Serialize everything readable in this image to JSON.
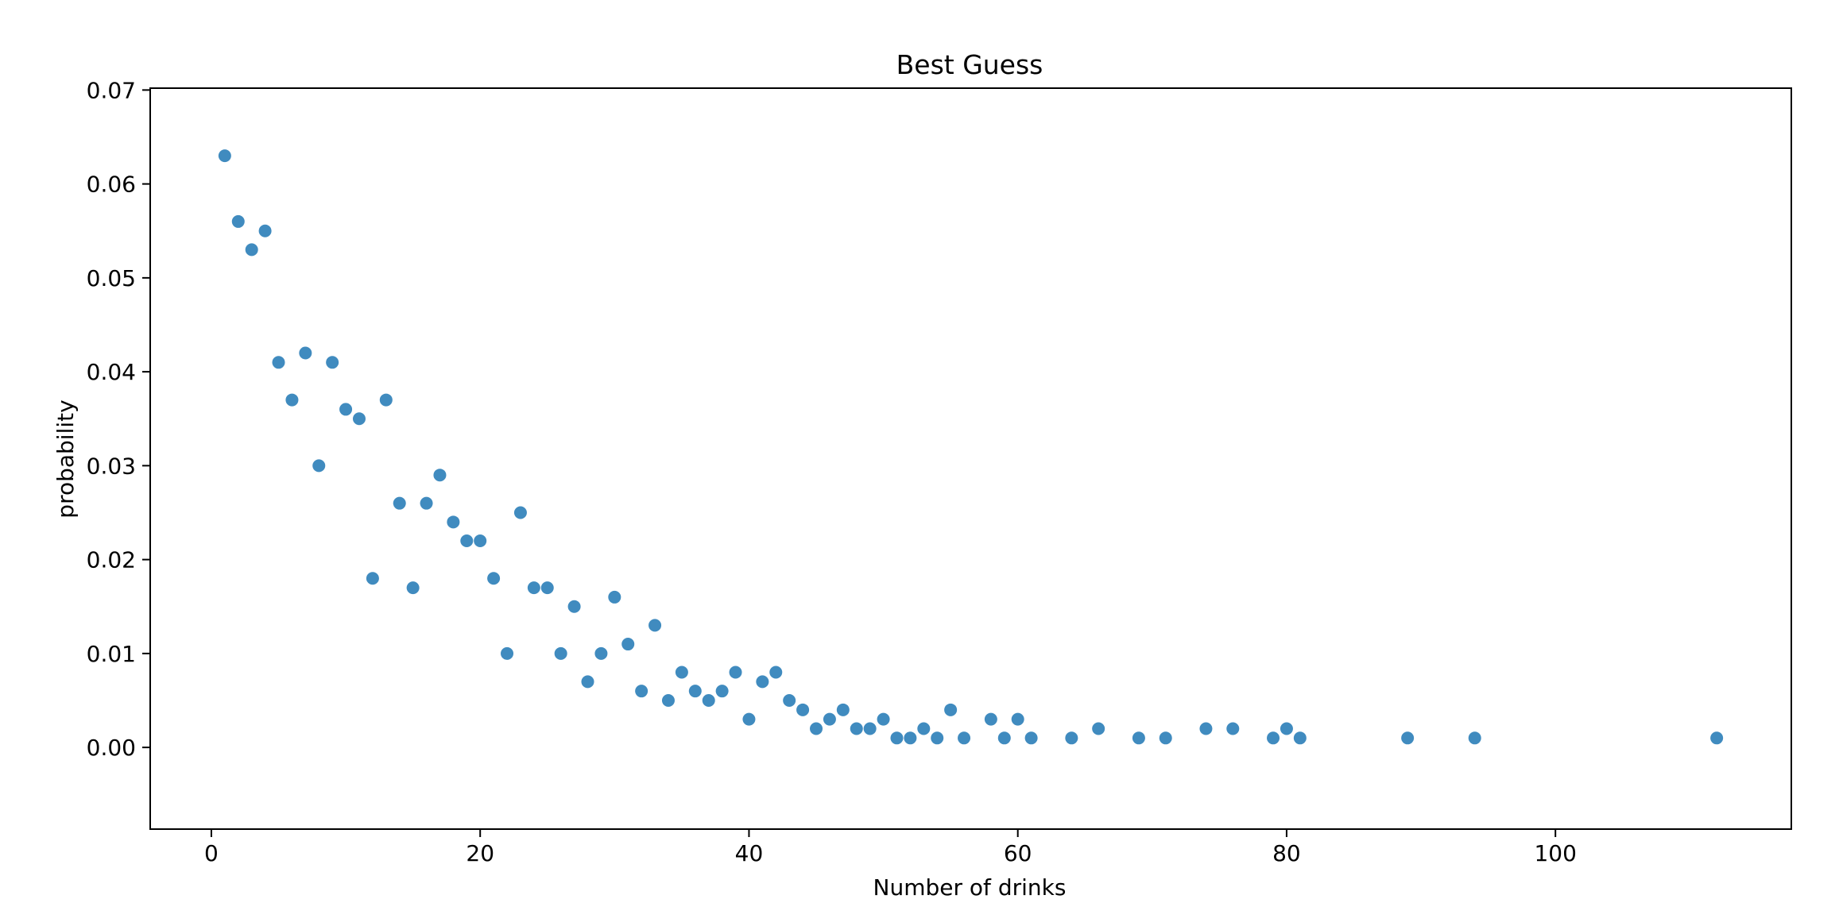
{
  "chart_data": {
    "type": "scatter",
    "title": "Best Guess",
    "xlabel": "Number of drinks",
    "ylabel": "probability",
    "xlim": [
      -4.55,
      117.55
    ],
    "ylim": [
      -0.0087,
      0.0702
    ],
    "xticks": [
      0,
      20,
      40,
      60,
      80,
      100
    ],
    "yticks": [
      0.0,
      0.01,
      0.02,
      0.03,
      0.04,
      0.05,
      0.06,
      0.07
    ],
    "xtick_labels": [
      "0",
      "20",
      "40",
      "60",
      "80",
      "100"
    ],
    "ytick_labels": [
      "0.00",
      "0.01",
      "0.02",
      "0.03",
      "0.04",
      "0.05",
      "0.06",
      "0.07"
    ],
    "grid": false,
    "legend": "none",
    "marker_color": "#1f77b4",
    "marker_alpha": 0.85,
    "series": [
      {
        "x": [
          1,
          2,
          3,
          4,
          5,
          6,
          7,
          8,
          9,
          10,
          11,
          12,
          13,
          14,
          15,
          16,
          17,
          18,
          19,
          20,
          21,
          22,
          23,
          24,
          25,
          26,
          27,
          28,
          29,
          30,
          31,
          32,
          33,
          34,
          35,
          36,
          37,
          38,
          39,
          40,
          41,
          42,
          43,
          44,
          45,
          46,
          47,
          48,
          49,
          50,
          51,
          52,
          53,
          54,
          55,
          56,
          58,
          59,
          60,
          61,
          64,
          66,
          69,
          71,
          74,
          76,
          79,
          80,
          81,
          89,
          94,
          112
        ],
        "y": [
          0.063,
          0.056,
          0.053,
          0.055,
          0.041,
          0.037,
          0.042,
          0.03,
          0.041,
          0.036,
          0.035,
          0.018,
          0.037,
          0.026,
          0.017,
          0.026,
          0.029,
          0.024,
          0.022,
          0.022,
          0.018,
          0.01,
          0.025,
          0.017,
          0.017,
          0.01,
          0.015,
          0.007,
          0.01,
          0.016,
          0.011,
          0.006,
          0.013,
          0.005,
          0.008,
          0.006,
          0.005,
          0.006,
          0.008,
          0.003,
          0.007,
          0.008,
          0.005,
          0.004,
          0.002,
          0.003,
          0.004,
          0.002,
          0.002,
          0.003,
          0.001,
          0.001,
          0.002,
          0.001,
          0.004,
          0.001,
          0.003,
          0.001,
          0.003,
          0.001,
          0.001,
          0.002,
          0.001,
          0.001,
          0.002,
          0.002,
          0.001,
          0.002,
          0.001,
          0.001,
          0.001,
          0.001
        ]
      }
    ]
  }
}
